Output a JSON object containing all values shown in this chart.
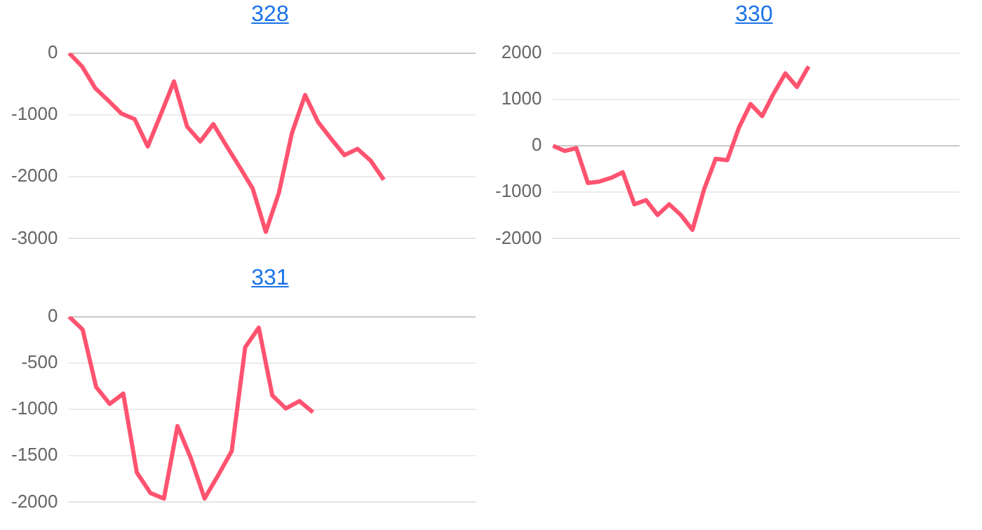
{
  "chart_data": [
    {
      "type": "line",
      "title": "328",
      "categories": [
        null,
        null,
        null,
        null,
        null,
        null,
        null,
        null,
        null,
        null,
        null,
        null,
        null,
        null,
        null,
        null,
        null,
        null,
        null,
        null,
        null,
        null,
        null,
        null,
        null,
        null,
        null,
        null,
        null,
        null,
        null,
        null
      ],
      "series": [
        {
          "color": "#ff5370",
          "values": [
            0,
            -220,
            -570,
            -770,
            -980,
            -1070,
            -1510,
            -990,
            -460,
            -1190,
            -1430,
            -1150,
            -1500,
            -1840,
            -2190,
            -2890,
            -2260,
            -1290,
            -680,
            -1120,
            -1390,
            -1650,
            -1550,
            -1740,
            -2050,
            null,
            null,
            null,
            null,
            null,
            null,
            null
          ]
        }
      ],
      "ylim": [
        -3000,
        0
      ],
      "yticks": [
        -3000,
        -2000,
        -1000,
        0
      ],
      "grid": "y",
      "tick_labels": "y",
      "legend": false
    },
    {
      "type": "line",
      "title": "330",
      "categories": [
        null,
        null,
        null,
        null,
        null,
        null,
        null,
        null,
        null,
        null,
        null,
        null,
        null,
        null,
        null,
        null,
        null,
        null,
        null,
        null,
        null,
        null,
        null,
        null,
        null,
        null,
        null,
        null,
        null,
        null,
        null,
        null,
        null,
        null,
        null,
        null
      ],
      "series": [
        {
          "color": "#ff5370",
          "values": [
            0,
            -110,
            -50,
            -800,
            -770,
            -690,
            -570,
            -1260,
            -1170,
            -1490,
            -1260,
            -1490,
            -1810,
            -940,
            -280,
            -310,
            390,
            900,
            640,
            1130,
            1560,
            1270,
            1710,
            null,
            null,
            null,
            null,
            null,
            null,
            null,
            null,
            null,
            null,
            null,
            null,
            null
          ]
        }
      ],
      "ylim": [
        -2000,
        2000
      ],
      "yticks": [
        -2000,
        -1000,
        0,
        1000,
        2000
      ],
      "grid": "y",
      "tick_labels": "y",
      "legend": false
    },
    {
      "type": "line",
      "title": "331",
      "categories": [
        null,
        null,
        null,
        null,
        null,
        null,
        null,
        null,
        null,
        null,
        null,
        null,
        null,
        null,
        null,
        null,
        null,
        null,
        null,
        null,
        null,
        null,
        null,
        null,
        null,
        null,
        null,
        null,
        null,
        null,
        null
      ],
      "series": [
        {
          "color": "#ff5370",
          "values": [
            0,
            -140,
            -760,
            -940,
            -830,
            -1680,
            -1900,
            -1960,
            -1180,
            -1530,
            -1960,
            -1710,
            -1450,
            -330,
            -120,
            -850,
            -990,
            -910,
            -1030,
            null,
            null,
            null,
            null,
            null,
            null,
            null,
            null,
            null,
            null,
            null,
            null
          ]
        }
      ],
      "ylim": [
        -2000,
        0
      ],
      "yticks": [
        -2000,
        -1500,
        -1000,
        -500,
        0
      ],
      "grid": "y",
      "tick_labels": "y",
      "legend": false
    }
  ]
}
